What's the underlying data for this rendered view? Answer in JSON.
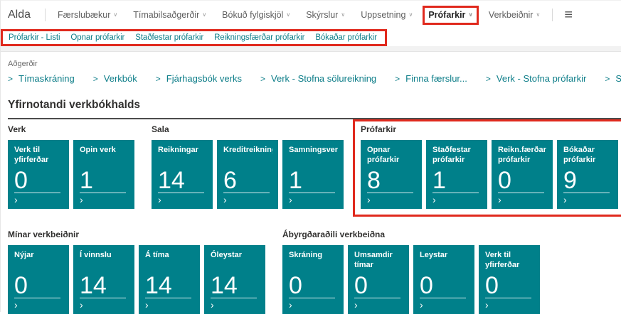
{
  "app": {
    "brand": "Alda"
  },
  "top_nav": {
    "items": [
      {
        "label": "Færslubækur",
        "highlighted": false
      },
      {
        "label": "Tímabilsaðgerðir",
        "highlighted": false
      },
      {
        "label": "Bókuð fylgiskjöl",
        "highlighted": false
      },
      {
        "label": "Skýrslur",
        "highlighted": false
      },
      {
        "label": "Uppsetning",
        "highlighted": false
      },
      {
        "label": "Prófarkir",
        "highlighted": true
      },
      {
        "label": "Verkbeiðnir",
        "highlighted": false
      }
    ],
    "dropdown_glyph": "∨",
    "menu_icon_glyph": "≡"
  },
  "ribbon": {
    "highlighted": true,
    "links": [
      "Prófarkir - Listi",
      "Opnar prófarkir",
      "Staðfestar prófarkir",
      "Reikningsfærðar prófarkir",
      "Bókaðar prófarkir"
    ]
  },
  "actions": {
    "label": "Aðgerðir",
    "chevron_glyph": ">",
    "links": [
      "Tímaskráning",
      "Verkbók",
      "Fjárhagsbók verks",
      "Verk - Stofna sölureikning",
      "Finna færslur...",
      "Verk - Stofna prófarkir",
      "Stofna verkbeiðni"
    ]
  },
  "page": {
    "title": "Yfirnotandi verkbókhalds"
  },
  "cue_rows": [
    {
      "groups": [
        {
          "name": "Verk",
          "highlighted": false,
          "tiles": [
            {
              "label": "Verk til yfirferðar",
              "value": "0"
            },
            {
              "label": "Opin verk",
              "value": "1"
            }
          ]
        },
        {
          "name": "Sala",
          "highlighted": false,
          "tiles": [
            {
              "label": "Reikningar",
              "value": "14"
            },
            {
              "label": "Kreditreikningar",
              "value": "6"
            },
            {
              "label": "Samningsverk",
              "value": "1"
            }
          ]
        },
        {
          "name": "Prófarkir",
          "highlighted": true,
          "tiles": [
            {
              "label": "Opnar prófarkir",
              "value": "8"
            },
            {
              "label": "Staðfestar prófarkir",
              "value": "1"
            },
            {
              "label": "Reikn.færðar prófarkir",
              "value": "0"
            },
            {
              "label": "Bókaðar prófarkir",
              "value": "9"
            }
          ]
        }
      ]
    },
    {
      "groups": [
        {
          "name": "Mínar verkbeiðnir",
          "highlighted": false,
          "tiles": [
            {
              "label": "Nýjar",
              "value": "0"
            },
            {
              "label": "Í vinnslu",
              "value": "14"
            },
            {
              "label": "Á tíma",
              "value": "14"
            },
            {
              "label": "Óleystar",
              "value": "14"
            }
          ]
        },
        {
          "name": "Ábyrgðaraðili verkbeiðna",
          "highlighted": false,
          "tiles": [
            {
              "label": "Skráning",
              "value": "0"
            },
            {
              "label": "Umsamdir tímar",
              "value": "0"
            },
            {
              "label": "Leystar",
              "value": "0"
            },
            {
              "label": "Verk til yfirferðar",
              "value": "0"
            }
          ]
        }
      ]
    }
  ],
  "colors": {
    "tile_teal": "#00808a",
    "link_teal": "#0e7e89",
    "highlight_red": "#e0291d",
    "nav_text_gray": "#5f5f5f",
    "heading_dark": "#323130"
  },
  "tile_chevron_glyph": "›"
}
